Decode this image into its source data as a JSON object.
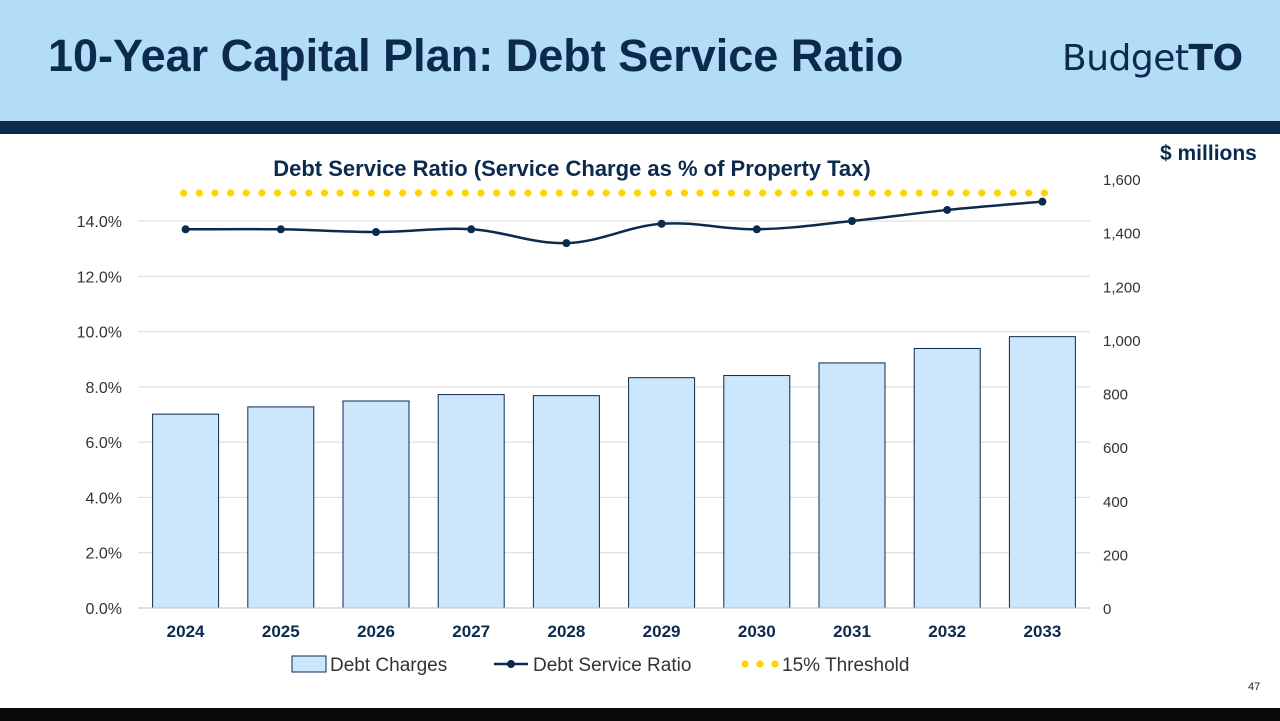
{
  "slide": {
    "title": "10-Year Capital Plan: Debt Service Ratio",
    "logo_regular": "Budget",
    "logo_bold": "TO",
    "units_label": "$ millions",
    "page_number": "47"
  },
  "colors": {
    "header_bg": "#b3dcf7",
    "header_bar": "#0b2a4d",
    "bar_fill": "#cce6fb",
    "bar_stroke": "#0b2a4d",
    "line": "#0b2a4d",
    "threshold": "#ffd400"
  },
  "chart_data": {
    "type": "bar",
    "title": "Debt Service Ratio (Service Charge as % of Property Tax)",
    "categories": [
      "2024",
      "2025",
      "2026",
      "2027",
      "2028",
      "2029",
      "2030",
      "2031",
      "2032",
      "2033"
    ],
    "series": [
      {
        "name": "Debt Charges",
        "type": "bar",
        "axis": "right",
        "values": [
          723,
          750,
          772,
          796,
          792,
          859,
          867,
          914,
          968,
          1012
        ]
      },
      {
        "name": "Debt Service Ratio",
        "type": "line",
        "axis": "left",
        "values": [
          13.7,
          13.7,
          13.6,
          13.7,
          13.2,
          13.9,
          13.7,
          14.0,
          14.4,
          14.7
        ]
      },
      {
        "name": "15% Threshold",
        "type": "dotted-line",
        "axis": "left",
        "values": [
          15,
          15,
          15,
          15,
          15,
          15,
          15,
          15,
          15,
          15
        ]
      }
    ],
    "left_axis": {
      "ylim": [
        0,
        15.5
      ],
      "ticks": [
        0,
        2,
        4,
        6,
        8,
        10,
        12,
        14
      ],
      "tick_labels": [
        "0.0%",
        "2.0%",
        "4.0%",
        "6.0%",
        "8.0%",
        "10.0%",
        "12.0%",
        "14.0%"
      ]
    },
    "right_axis": {
      "ylim": [
        0,
        1600
      ],
      "ticks": [
        0,
        200,
        400,
        600,
        800,
        1000,
        1200,
        1400,
        1600
      ],
      "tick_labels": [
        "0",
        "200",
        "400",
        "600",
        "800",
        "1,000",
        "1,200",
        "1,400",
        "1,600"
      ]
    },
    "grid": true,
    "legend_position": "bottom"
  }
}
